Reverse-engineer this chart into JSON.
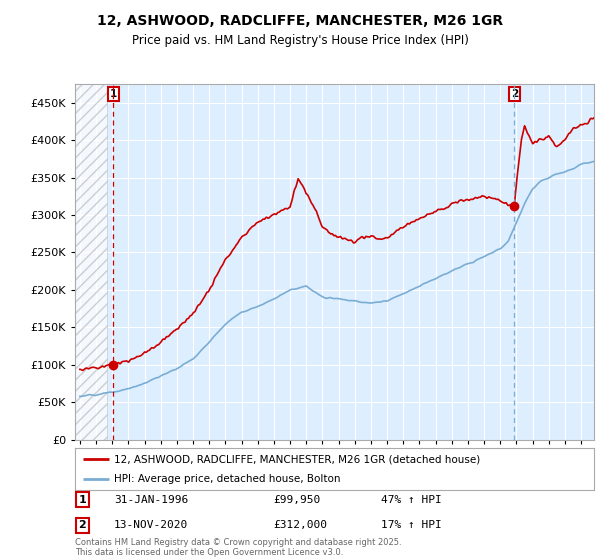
{
  "title_line1": "12, ASHWOOD, RADCLIFFE, MANCHESTER, M26 1GR",
  "title_line2": "Price paid vs. HM Land Registry's House Price Index (HPI)",
  "background_color": "#ffffff",
  "plot_bg_color": "#ddeeff",
  "red_color": "#cc0000",
  "blue_color": "#7aadd4",
  "marker1_x": 1996.08,
  "marker1_y": 99950,
  "marker2_x": 2020.87,
  "marker2_y": 312000,
  "annotation1": {
    "num": "1",
    "date": "31-JAN-1996",
    "price": "£99,950",
    "hpi": "47% ↑ HPI"
  },
  "annotation2": {
    "num": "2",
    "date": "13-NOV-2020",
    "price": "£312,000",
    "hpi": "17% ↑ HPI"
  },
  "legend1": "12, ASHWOOD, RADCLIFFE, MANCHESTER, M26 1GR (detached house)",
  "legend2": "HPI: Average price, detached house, Bolton",
  "footer": "Contains HM Land Registry data © Crown copyright and database right 2025.\nThis data is licensed under the Open Government Licence v3.0.",
  "ylim": [
    0,
    475000
  ],
  "xlim_start": 1993.7,
  "xlim_end": 2025.8,
  "hatch_end": 1995.7
}
